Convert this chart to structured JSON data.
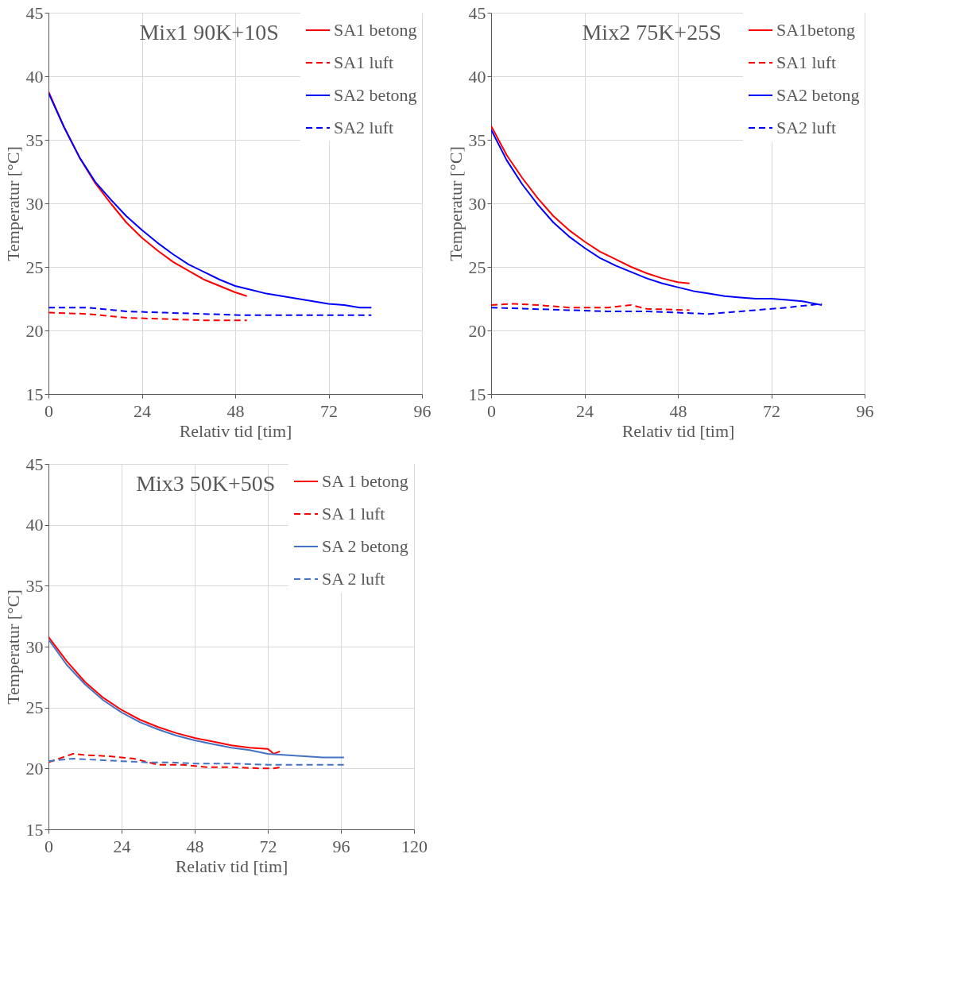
{
  "chart_data": [
    {
      "type": "line",
      "title": "Mix1 90K+10S",
      "xlabel": "Relativ tid [tim]",
      "ylabel": "Temperatur [°C]",
      "xlim": [
        0,
        96
      ],
      "xticks": [
        0,
        24,
        48,
        72,
        96
      ],
      "ylim": [
        15,
        45
      ],
      "yticks": [
        15,
        20,
        25,
        30,
        35,
        40,
        45
      ],
      "grid": true,
      "legend": "top right",
      "series": [
        {
          "name": "SA1 betong",
          "color": "#ff0000",
          "line_style": "solid",
          "x": [
            0,
            4,
            8,
            12,
            16,
            20,
            24,
            28,
            32,
            36,
            40,
            44,
            48,
            51
          ],
          "values": [
            38.8,
            36.0,
            33.6,
            31.6,
            30.0,
            28.5,
            27.3,
            26.3,
            25.4,
            24.7,
            24.0,
            23.5,
            23.0,
            22.7
          ]
        },
        {
          "name": "SA1 luft",
          "color": "#ff0000",
          "line_style": "dashed",
          "x": [
            0,
            10,
            20,
            30,
            40,
            51
          ],
          "values": [
            21.4,
            21.3,
            21.0,
            20.9,
            20.8,
            20.8
          ]
        },
        {
          "name": "SA2 betong",
          "color": "#0000ff",
          "line_style": "solid",
          "x": [
            0,
            4,
            8,
            12,
            16,
            20,
            24,
            28,
            32,
            36,
            40,
            44,
            48,
            52,
            56,
            60,
            64,
            68,
            72,
            76,
            80,
            83
          ],
          "values": [
            38.7,
            36.0,
            33.6,
            31.7,
            30.3,
            29.0,
            27.9,
            26.9,
            26.0,
            25.2,
            24.6,
            24.0,
            23.5,
            23.2,
            22.9,
            22.7,
            22.5,
            22.3,
            22.1,
            22.0,
            21.8,
            21.8
          ]
        },
        {
          "name": "SA2 luft",
          "color": "#0000ff",
          "line_style": "dashed",
          "x": [
            0,
            10,
            20,
            30,
            40,
            50,
            60,
            70,
            83
          ],
          "values": [
            21.8,
            21.8,
            21.5,
            21.4,
            21.3,
            21.2,
            21.2,
            21.2,
            21.2
          ]
        }
      ]
    },
    {
      "type": "line",
      "title": "Mix2 75K+25S",
      "xlabel": "Relativ tid [tim]",
      "ylabel": "Temperatur [°C]",
      "xlim": [
        0,
        96
      ],
      "xticks": [
        0,
        24,
        48,
        72,
        96
      ],
      "ylim": [
        15,
        45
      ],
      "yticks": [
        15,
        20,
        25,
        30,
        35,
        40,
        45
      ],
      "grid": true,
      "legend": "top right",
      "series": [
        {
          "name": "SA1betong",
          "color": "#ff0000",
          "line_style": "solid",
          "x": [
            0,
            4,
            8,
            12,
            16,
            20,
            24,
            28,
            32,
            36,
            40,
            44,
            48,
            51
          ],
          "values": [
            36.1,
            33.8,
            32.0,
            30.4,
            29.0,
            27.9,
            27.0,
            26.2,
            25.6,
            25.0,
            24.5,
            24.1,
            23.8,
            23.7
          ]
        },
        {
          "name": "SA1 luft",
          "color": "#ff0000",
          "line_style": "dashed",
          "x": [
            0,
            6,
            12,
            20,
            30,
            36,
            40,
            51
          ],
          "values": [
            22.0,
            22.1,
            22.0,
            21.8,
            21.8,
            22.0,
            21.7,
            21.6
          ]
        },
        {
          "name": "SA2 betong",
          "color": "#0000ff",
          "line_style": "solid",
          "x": [
            0,
            4,
            8,
            12,
            16,
            20,
            24,
            28,
            32,
            36,
            40,
            44,
            48,
            52,
            56,
            60,
            64,
            68,
            72,
            76,
            80,
            85
          ],
          "values": [
            35.8,
            33.4,
            31.5,
            29.9,
            28.5,
            27.4,
            26.5,
            25.7,
            25.1,
            24.6,
            24.1,
            23.7,
            23.4,
            23.1,
            22.9,
            22.7,
            22.6,
            22.5,
            22.5,
            22.4,
            22.3,
            22.0
          ]
        },
        {
          "name": "SA2 luft",
          "color": "#0000ff",
          "line_style": "dashed",
          "x": [
            0,
            10,
            20,
            30,
            40,
            48,
            56,
            60,
            68,
            76,
            82,
            85
          ],
          "values": [
            21.8,
            21.7,
            21.6,
            21.5,
            21.5,
            21.4,
            21.3,
            21.4,
            21.6,
            21.8,
            22.0,
            22.1
          ]
        }
      ]
    },
    {
      "type": "line",
      "title": "Mix3  50K+50S",
      "xlabel": "Relativ tid [tim]",
      "ylabel": "Temperatur [°C]",
      "xlim": [
        0,
        120
      ],
      "xticks": [
        0,
        24,
        48,
        72,
        96,
        120
      ],
      "ylim": [
        15,
        45
      ],
      "yticks": [
        15,
        20,
        25,
        30,
        35,
        40,
        45
      ],
      "grid": true,
      "legend": "top right",
      "series": [
        {
          "name": "SA 1 betong",
          "color": "#ff0000",
          "line_style": "solid",
          "x": [
            0,
            6,
            12,
            18,
            24,
            30,
            36,
            42,
            48,
            54,
            60,
            66,
            72,
            74,
            76
          ],
          "values": [
            30.8,
            28.8,
            27.1,
            25.8,
            24.8,
            24.0,
            23.4,
            22.9,
            22.5,
            22.2,
            21.9,
            21.7,
            21.6,
            21.2,
            21.4
          ]
        },
        {
          "name": "SA 1 luft",
          "color": "#ff0000",
          "line_style": "dashed",
          "x": [
            0,
            8,
            12,
            20,
            28,
            36,
            44,
            52,
            60,
            70,
            74,
            76
          ],
          "values": [
            20.5,
            21.2,
            21.1,
            21.0,
            20.8,
            20.3,
            20.3,
            20.1,
            20.1,
            20.0,
            20.0,
            20.1
          ]
        },
        {
          "name": "SA 2 betong",
          "color": "#4472c4",
          "line_style": "solid",
          "x": [
            0,
            6,
            12,
            18,
            24,
            30,
            36,
            42,
            48,
            54,
            60,
            66,
            72,
            78,
            84,
            90,
            97
          ],
          "values": [
            30.6,
            28.5,
            26.9,
            25.6,
            24.6,
            23.8,
            23.2,
            22.7,
            22.3,
            22.0,
            21.7,
            21.5,
            21.2,
            21.1,
            21.0,
            20.9,
            20.9
          ]
        },
        {
          "name": "SA 2 luft",
          "color": "#4472c4",
          "line_style": "dashed",
          "x": [
            0,
            8,
            16,
            24,
            32,
            40,
            48,
            60,
            72,
            84,
            97
          ],
          "values": [
            20.6,
            20.8,
            20.7,
            20.6,
            20.5,
            20.5,
            20.4,
            20.4,
            20.3,
            20.3,
            20.3
          ]
        }
      ]
    }
  ]
}
